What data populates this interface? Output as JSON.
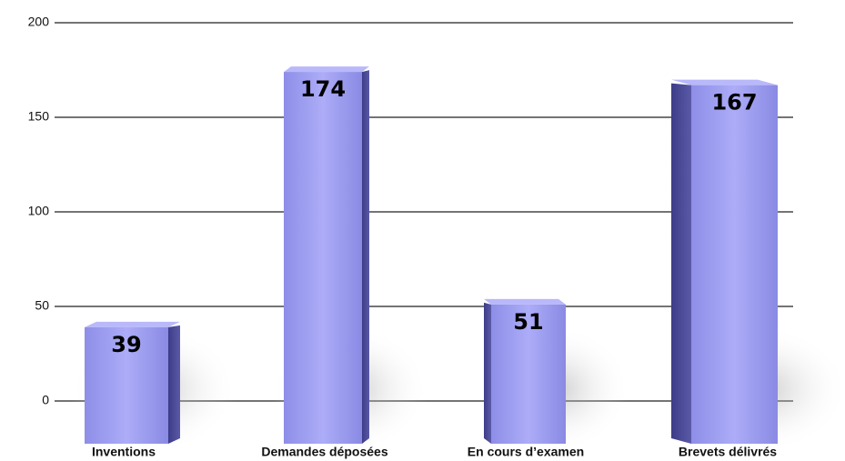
{
  "chart_data": {
    "type": "bar",
    "categories": [
      "Inventions",
      "Demandes déposées",
      "En cours d’examen",
      "Brevets délivrés"
    ],
    "values": [
      39,
      174,
      51,
      167
    ],
    "color": "#9c9cf2",
    "ylim": [
      0,
      200
    ],
    "yticks": [
      0,
      50,
      100,
      150,
      200
    ],
    "grid": true
  }
}
